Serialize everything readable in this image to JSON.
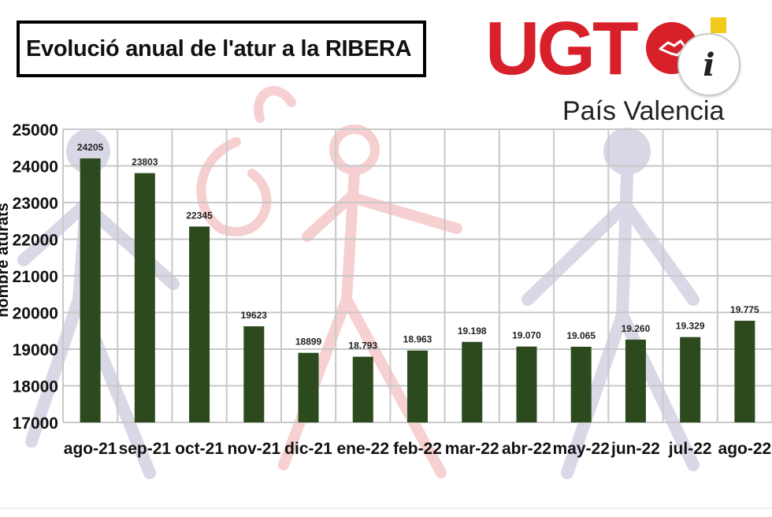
{
  "header": {
    "title": "Evolució anual de l'atur a la RIBERA"
  },
  "logo": {
    "brand": "UGT",
    "subtitle": "País Valencia"
  },
  "info_button": {
    "label": "i",
    "icon": "info-icon"
  },
  "colors": {
    "bar": "#2d4a1e",
    "grid": "#c8c8c8",
    "brand_red": "#d8202a"
  },
  "chart_data": {
    "type": "bar",
    "title": "Evolució anual de l'atur a la RIBERA",
    "ylabel": "nombre aturats",
    "xlabel": "",
    "ylim": [
      17000,
      25000
    ],
    "yticks": [
      17000,
      18000,
      19000,
      20000,
      21000,
      22000,
      23000,
      24000,
      25000
    ],
    "grid": true,
    "categories": [
      "ago-21",
      "sep-21",
      "oct-21",
      "nov-21",
      "dic-21",
      "ene-22",
      "feb-22",
      "mar-22",
      "abr-22",
      "may-22",
      "jun-22",
      "jul-22",
      "ago-22"
    ],
    "values": [
      24205,
      23803,
      22345,
      19623,
      18899,
      18793,
      18963,
      19198,
      19070,
      19065,
      19260,
      19329,
      19775
    ],
    "data_labels": [
      "24205",
      "23803",
      "22345",
      "19623",
      "18899",
      "18.793",
      "18.963",
      "19.198",
      "19.070",
      "19.065",
      "19.260",
      "19.329",
      "19.775"
    ]
  }
}
